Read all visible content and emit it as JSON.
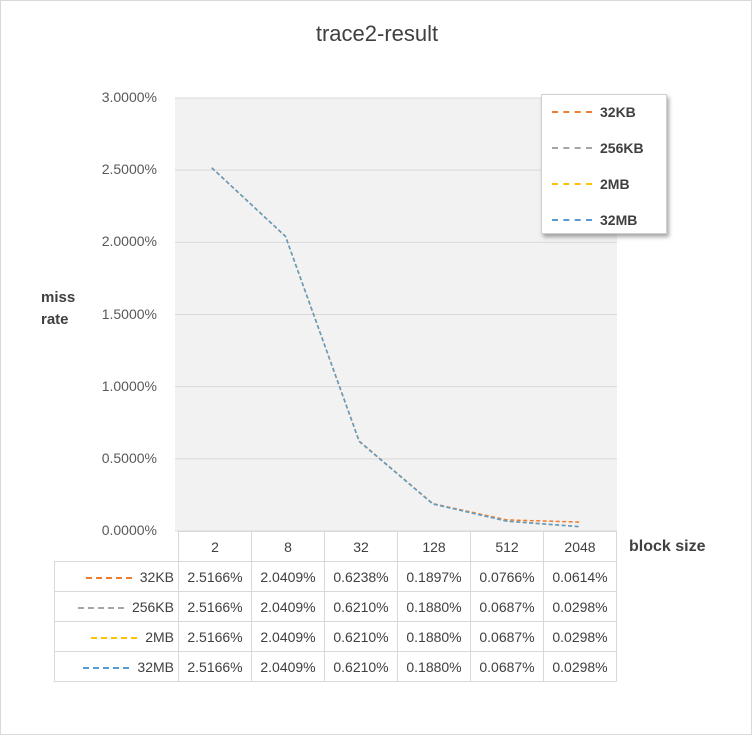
{
  "chart_data": {
    "type": "line",
    "title": "trace2-result",
    "ylabel": "miss rate",
    "xlabel": "block size",
    "categories": [
      "2",
      "8",
      "32",
      "128",
      "512",
      "2048"
    ],
    "ylim": [
      0,
      0.03
    ],
    "yticks": [
      "3.0000%",
      "2.5000%",
      "2.0000%",
      "1.5000%",
      "1.0000%",
      "0.5000%",
      "0.0000%"
    ],
    "grid": true,
    "legend_position": "top-right",
    "series": [
      {
        "name": "32KB",
        "color": "#ed7d31",
        "values": [
          0.025166,
          0.020409,
          0.006238,
          0.001897,
          0.000766,
          0.000614
        ],
        "labels": [
          "2.5166%",
          "2.0409%",
          "0.6238%",
          "0.1897%",
          "0.0766%",
          "0.0614%"
        ]
      },
      {
        "name": "256KB",
        "color": "#a5a5a5",
        "values": [
          0.025166,
          0.020409,
          0.00621,
          0.00188,
          0.000687,
          0.000298
        ],
        "labels": [
          "2.5166%",
          "2.0409%",
          "0.6210%",
          "0.1880%",
          "0.0687%",
          "0.0298%"
        ]
      },
      {
        "name": "2MB",
        "color": "#ffc000",
        "values": [
          0.025166,
          0.020409,
          0.00621,
          0.00188,
          0.000687,
          0.000298
        ],
        "labels": [
          "2.5166%",
          "2.0409%",
          "0.6210%",
          "0.1880%",
          "0.0687%",
          "0.0298%"
        ]
      },
      {
        "name": "32MB",
        "color": "#5b9bd5",
        "values": [
          0.025166,
          0.020409,
          0.00621,
          0.00188,
          0.000687,
          0.000298
        ],
        "labels": [
          "2.5166%",
          "2.0409%",
          "0.6210%",
          "0.1880%",
          "0.0687%",
          "0.0298%"
        ]
      }
    ]
  }
}
